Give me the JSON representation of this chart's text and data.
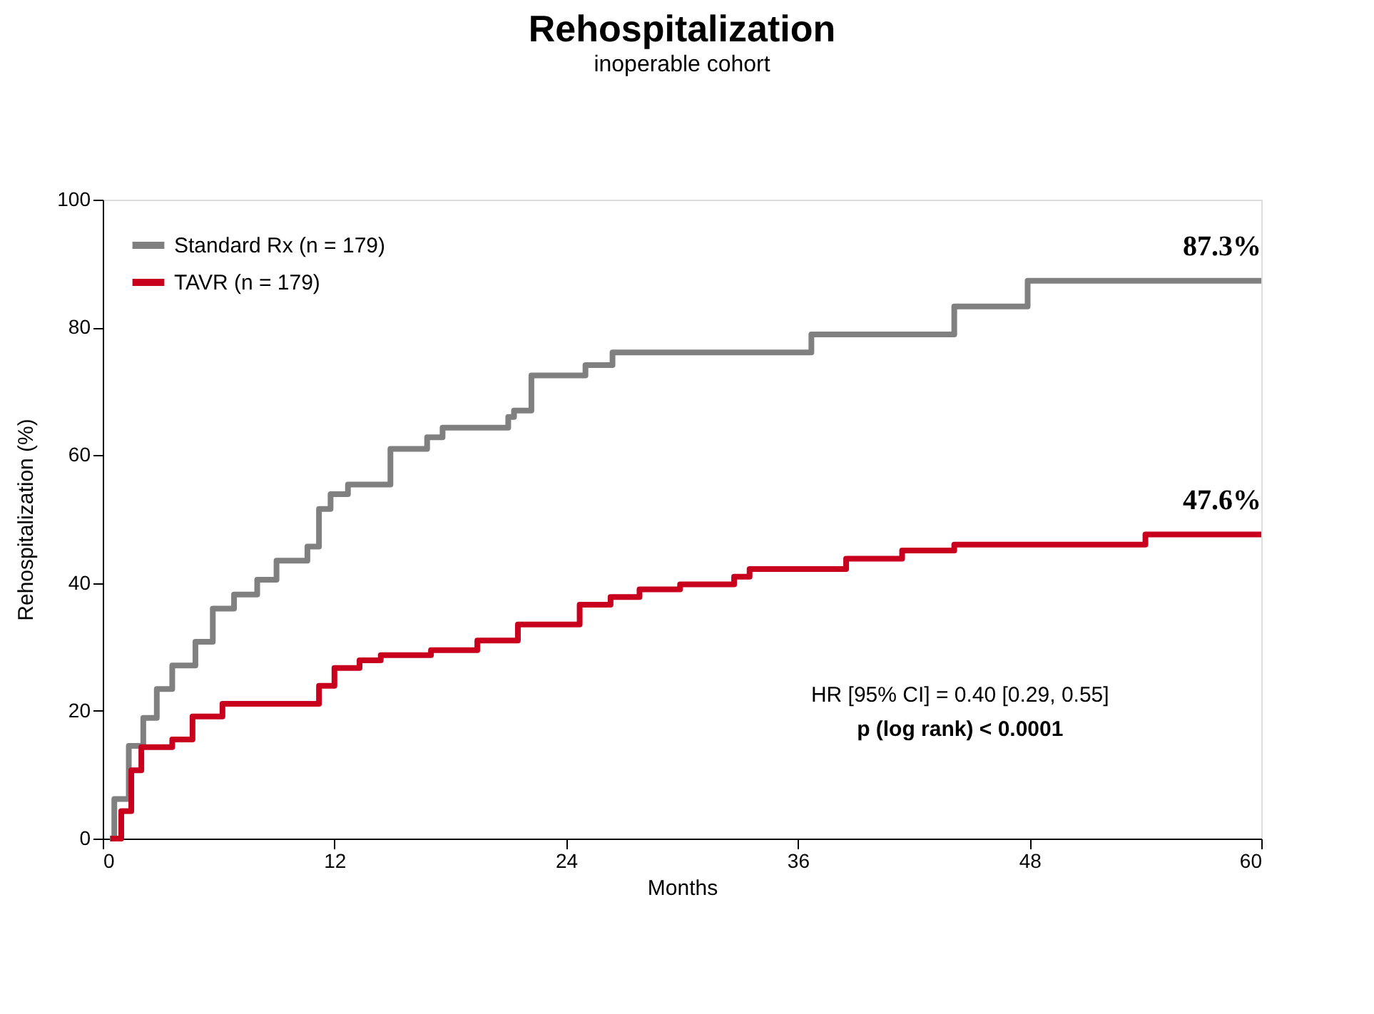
{
  "chart_data": {
    "type": "step",
    "title": "Rehospitalization",
    "subtitle": "inoperable cohort",
    "xlabel": "Months",
    "ylabel": "Rehospitalization (%)",
    "xlim": [
      0,
      60
    ],
    "xticks": [
      0,
      12,
      24,
      36,
      48,
      60
    ],
    "ylim": [
      0,
      100
    ],
    "yticks": [
      0,
      20,
      40,
      60,
      80,
      100
    ],
    "grid": false,
    "legend": "top left",
    "marker": "none",
    "line_style": "solid",
    "series": [
      {
        "name": "Standard Rx (n = 179)",
        "color": "#808080",
        "x": [
          0.37,
          0.6,
          1.35,
          2.1,
          2.8,
          3.6,
          4.8,
          5.7,
          6.8,
          8.0,
          9.0,
          10.6,
          11.2,
          11.8,
          12.7,
          14.9,
          16.8,
          17.6,
          21.0,
          21.3,
          22.2,
          25.0,
          26.4,
          36.7,
          44.1,
          47.9,
          60
        ],
        "values": [
          0,
          6.2,
          14.5,
          18.9,
          23.4,
          27.1,
          30.8,
          36,
          38.2,
          40.5,
          43.5,
          45.7,
          51.6,
          53.9,
          55.4,
          61,
          62.8,
          64.3,
          66,
          67,
          72.5,
          74.1,
          76.1,
          78.9,
          83.3,
          87.3,
          87.3
        ]
      },
      {
        "name": "TAVR (n = 179)",
        "color": "#c8001e",
        "x": [
          0.4,
          0.96,
          1.48,
          2.0,
          3.6,
          4.65,
          6.2,
          11.2,
          12.0,
          13.3,
          14.4,
          17.0,
          19.4,
          21.5,
          24.7,
          26.3,
          27.8,
          29.9,
          32.7,
          33.5,
          38.5,
          41.4,
          44.1,
          54.0,
          60
        ],
        "values": [
          0,
          4.3,
          10.7,
          14.3,
          15.5,
          19.1,
          21.1,
          23.9,
          26.7,
          27.9,
          28.7,
          29.5,
          31.0,
          33.5,
          36.6,
          37.8,
          39.0,
          39.8,
          41.0,
          42.2,
          43.8,
          45.1,
          46.0,
          47.6,
          47.6
        ]
      }
    ],
    "annotations": [
      {
        "text": "87.3%",
        "x": 60,
        "y": 87.3
      },
      {
        "text": "47.6%",
        "x": 60,
        "y": 47.6
      },
      "HR [95% CI] = 0.40 [0.29, 0.55]",
      "p (log rank) < 0.0001"
    ]
  }
}
